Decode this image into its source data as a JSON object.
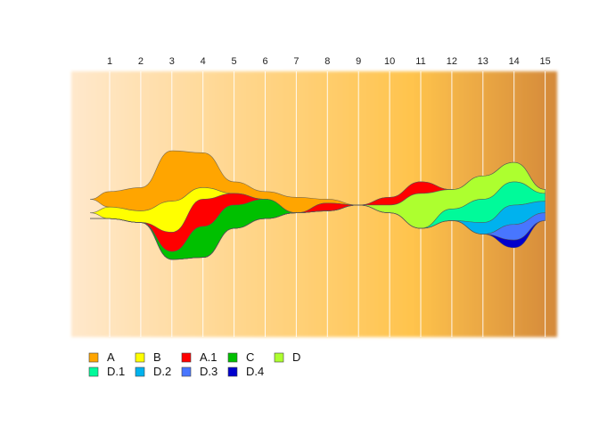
{
  "chart_data": {
    "type": "area",
    "subtype": "streamgraph",
    "title": "",
    "xlabel": "",
    "ylabel": "",
    "x": [
      1,
      2,
      3,
      4,
      5,
      6,
      7,
      8,
      9,
      10,
      11,
      12,
      13,
      14,
      15
    ],
    "x_tick_labels": [
      "1",
      "2",
      "3",
      "4",
      "5",
      "6",
      "7",
      "8",
      "9",
      "10",
      "11",
      "12",
      "13",
      "14",
      "15"
    ],
    "series": [
      {
        "name": "A",
        "color": "#FFA500",
        "values": [
          4,
          6,
          13,
          9,
          3,
          2,
          4,
          1,
          0,
          0,
          0,
          0,
          0,
          0,
          0
        ]
      },
      {
        "name": "B",
        "color": "#FFFF00",
        "values": [
          3,
          3,
          8,
          3,
          0,
          0,
          0,
          0,
          0,
          0,
          0,
          0,
          0,
          0,
          0
        ]
      },
      {
        "name": "A.1",
        "color": "#FF0000",
        "values": [
          0,
          0,
          5,
          7,
          3,
          0,
          0,
          2,
          0,
          2,
          3,
          0,
          0,
          0,
          0
        ]
      },
      {
        "name": "C",
        "color": "#00C000",
        "values": [
          0,
          0,
          2,
          8,
          6,
          5,
          0,
          0,
          0,
          0,
          0,
          0,
          0,
          0,
          0
        ]
      },
      {
        "name": "D",
        "color": "#ADFF2F",
        "values": [
          0,
          0,
          0,
          0,
          0,
          0,
          0,
          0,
          0,
          2,
          9,
          5,
          6,
          5,
          1
        ]
      },
      {
        "name": "D.1",
        "color": "#00FA9A",
        "values": [
          0,
          0,
          0,
          0,
          0,
          0,
          0,
          0,
          0,
          0,
          0,
          3,
          6,
          6,
          2
        ]
      },
      {
        "name": "D.2",
        "color": "#00B2EE",
        "values": [
          0,
          0,
          0,
          0,
          0,
          0,
          0,
          0,
          0,
          0,
          0,
          0,
          3,
          5,
          3
        ]
      },
      {
        "name": "D.3",
        "color": "#4876FF",
        "values": [
          0,
          0,
          0,
          0,
          0,
          0,
          0,
          0,
          0,
          0,
          0,
          0,
          0,
          4,
          2
        ]
      },
      {
        "name": "D.4",
        "color": "#0000CD",
        "values": [
          0,
          0,
          0,
          0,
          0,
          0,
          0,
          0,
          0,
          0,
          0,
          0,
          0,
          2,
          0
        ]
      }
    ],
    "xlim": [
      0.25,
      15.5
    ],
    "grid": true,
    "background_gradient": [
      "#FFE8CC",
      "#FFC44D",
      "#D4893A"
    ],
    "legend_position": "bottom-left",
    "legend_rows": [
      [
        "A",
        "B",
        "A.1",
        "C",
        "D"
      ],
      [
        "D.1",
        "D.2",
        "D.3",
        "D.4"
      ]
    ]
  }
}
